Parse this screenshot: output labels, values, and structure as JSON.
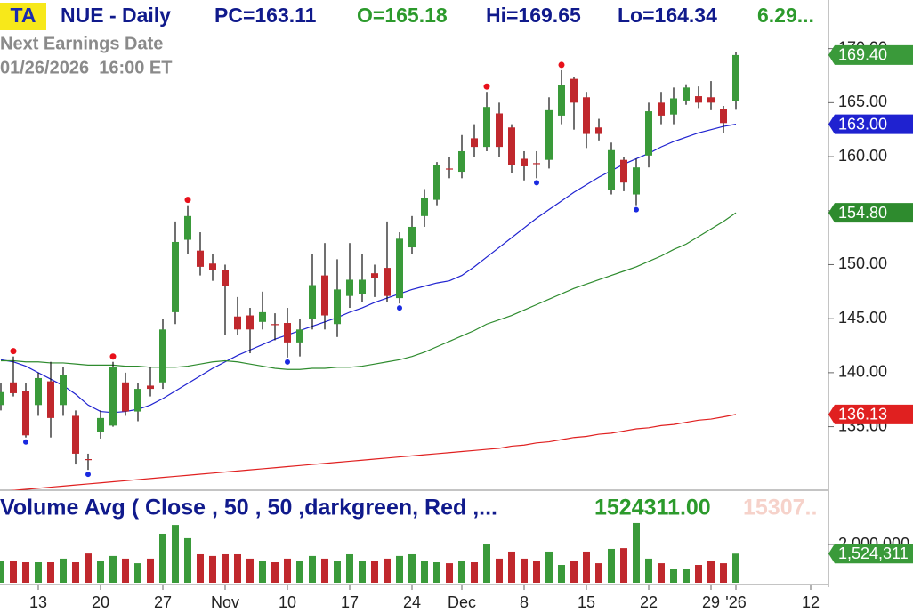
{
  "header": {
    "badge": "TA",
    "symbol": "NUE - Daily",
    "prev_close": "PC=163.11",
    "open": "O=165.18",
    "high": "Hi=169.65",
    "low": "Lo=164.34",
    "change": "6.29...",
    "earnings_title": "Next Earnings Date",
    "earnings_date": "01/26/2026  16:00 ET"
  },
  "chart_data": [
    {
      "type": "candlestick",
      "categories": [
        null,
        null,
        null,
        "13",
        null,
        null,
        null,
        null,
        "20",
        null,
        null,
        null,
        null,
        "27",
        null,
        null,
        null,
        null,
        "Nov",
        null,
        null,
        null,
        null,
        "10",
        null,
        null,
        null,
        null,
        "17",
        null,
        null,
        null,
        null,
        "24",
        null,
        null,
        null,
        "Dec",
        null,
        null,
        null,
        null,
        "8",
        null,
        null,
        null,
        null,
        "15",
        null,
        null,
        null,
        null,
        "22",
        null,
        null,
        null,
        null,
        "29",
        null,
        "'26",
        null,
        null,
        null,
        null,
        null,
        "12"
      ],
      "open": [
        137.0,
        139.1,
        138.3,
        137.0,
        139.2,
        137.0,
        136.0,
        132.0,
        134.5,
        135.1,
        139.1,
        136.4,
        138.8,
        139.1,
        145.6,
        152.3,
        151.3,
        150.1,
        149.5,
        145.2,
        145.3,
        144.7,
        144.5,
        144.6,
        142.8,
        145.0,
        149.0,
        144.5,
        147.1,
        147.3,
        149.2,
        149.7,
        146.9,
        151.6,
        154.5,
        156.0,
        158.9,
        158.6,
        161.7,
        160.9,
        164.0,
        162.7,
        159.8,
        159.4,
        159.7,
        163.8,
        167.2,
        165.5,
        162.7,
        156.9,
        159.7,
        156.5,
        160.1,
        165.0,
        163.9,
        165.2,
        165.6,
        165.5,
        164.4,
        165.18,
        null,
        null,
        null,
        null,
        null,
        null
      ],
      "high": [
        139.0,
        141.5,
        139.0,
        140.0,
        141.0,
        140.5,
        136.5,
        132.5,
        136.5,
        141.0,
        140.0,
        139.0,
        140.5,
        145.0,
        154.0,
        155.5,
        153.0,
        151.0,
        150.0,
        147.0,
        146.0,
        147.5,
        145.5,
        146.0,
        145.0,
        151.0,
        152.0,
        150.5,
        152.0,
        151.0,
        150.0,
        154.0,
        153.0,
        154.5,
        157.0,
        159.5,
        160.0,
        162.0,
        163.0,
        166.0,
        165.0,
        163.0,
        160.5,
        160.5,
        165.5,
        168.0,
        167.4,
        166.0,
        163.5,
        161.3,
        160.0,
        159.8,
        165.0,
        166.0,
        166.4,
        166.7,
        166.5,
        167.0,
        164.7,
        169.65,
        null,
        null,
        null,
        null,
        null,
        null
      ],
      "low": [
        136.5,
        137.8,
        134.0,
        136.0,
        134.0,
        136.0,
        131.5,
        131.0,
        133.9,
        135.0,
        136.0,
        135.5,
        137.8,
        138.5,
        144.5,
        151.0,
        149.0,
        148.5,
        143.5,
        143.5,
        141.8,
        144.0,
        143.0,
        141.4,
        141.5,
        144.0,
        144.0,
        143.3,
        146.0,
        146.5,
        147.0,
        146.5,
        146.4,
        151.0,
        153.5,
        155.5,
        158.0,
        158.0,
        160.0,
        160.5,
        160.0,
        158.5,
        157.8,
        158.0,
        158.9,
        163.0,
        162.5,
        160.8,
        161.5,
        156.5,
        156.8,
        155.5,
        159.0,
        163.0,
        163.0,
        164.8,
        164.5,
        164.3,
        162.2,
        164.34,
        null,
        null,
        null,
        null,
        null,
        null
      ],
      "close": [
        138.2,
        138.1,
        134.2,
        139.5,
        135.8,
        139.8,
        132.5,
        131.9,
        135.8,
        140.5,
        136.4,
        138.5,
        138.5,
        144.0,
        152.1,
        154.5,
        149.8,
        149.5,
        148.0,
        144.0,
        144.0,
        145.6,
        144.4,
        142.8,
        144.0,
        148.1,
        145.3,
        147.7,
        148.6,
        148.6,
        148.8,
        147.1,
        152.4,
        153.5,
        156.2,
        159.2,
        158.8,
        160.5,
        160.9,
        164.6,
        160.9,
        159.2,
        159.1,
        159.3,
        164.3,
        166.6,
        165.0,
        162.1,
        162.1,
        160.6,
        157.6,
        159.0,
        164.2,
        163.8,
        165.4,
        166.4,
        165.0,
        165.0,
        163.11,
        169.4,
        null,
        null,
        null,
        null,
        null,
        null
      ],
      "close_label": "169.40",
      "up_color": "#3a9a3a",
      "down_color": "#c0282d",
      "high_dot_color": "#e8101a",
      "low_dot_color": "#1a2ae0",
      "swing_highs": [
        1,
        9,
        15,
        39,
        45
      ],
      "swing_lows": [
        2,
        7,
        23,
        32,
        43,
        51
      ],
      "series": [
        {
          "color": "#1f22d0",
          "last_label": "163.00",
          "values": [
            141.2,
            141.0,
            140.6,
            140.0,
            139.4,
            138.8,
            138.0,
            137.0,
            136.4,
            136.3,
            136.4,
            136.6,
            137.0,
            137.6,
            138.3,
            139.0,
            139.7,
            140.4,
            141.0,
            141.6,
            142.1,
            142.6,
            143.1,
            143.5,
            143.9,
            144.3,
            144.7,
            145.1,
            145.6,
            146.0,
            146.5,
            146.9,
            147.3,
            147.7,
            148.0,
            148.3,
            148.5,
            149.0,
            149.8,
            150.7,
            151.6,
            152.5,
            153.4,
            154.3,
            155.1,
            155.9,
            156.7,
            157.4,
            158.1,
            158.7,
            159.3,
            159.8,
            160.3,
            160.9,
            161.4,
            161.8,
            162.2,
            162.5,
            162.8,
            163.0,
            null,
            null,
            null,
            null,
            null,
            null
          ]
        },
        {
          "color": "#2e8b2e",
          "last_label": "154.80",
          "values": [
            141.1,
            141.1,
            141.0,
            141.0,
            140.9,
            140.9,
            140.8,
            140.7,
            140.7,
            140.7,
            140.6,
            140.6,
            140.5,
            140.5,
            140.5,
            140.6,
            140.8,
            141.0,
            141.1,
            141.0,
            140.8,
            140.6,
            140.4,
            140.3,
            140.3,
            140.4,
            140.4,
            140.5,
            140.5,
            140.6,
            140.8,
            141.0,
            141.2,
            141.5,
            141.9,
            142.4,
            142.9,
            143.4,
            143.9,
            144.5,
            144.9,
            145.3,
            145.8,
            146.3,
            146.8,
            147.3,
            147.8,
            148.2,
            148.6,
            149.0,
            149.4,
            149.8,
            150.3,
            150.8,
            151.4,
            151.9,
            152.6,
            153.3,
            154.0,
            154.8,
            null,
            null,
            null,
            null,
            null,
            null
          ]
        },
        {
          "color": "#e02020",
          "last_label": "136.13",
          "values": [
            129.0,
            129.1,
            129.2,
            129.3,
            129.4,
            129.5,
            129.6,
            129.7,
            129.8,
            129.9,
            130.0,
            130.1,
            130.2,
            130.3,
            130.4,
            130.5,
            130.6,
            130.7,
            130.8,
            130.9,
            131.0,
            131.1,
            131.2,
            131.3,
            131.4,
            131.5,
            131.6,
            131.7,
            131.8,
            131.9,
            132.0,
            132.1,
            132.2,
            132.3,
            132.4,
            132.5,
            132.6,
            132.7,
            132.8,
            132.9,
            133.0,
            133.2,
            133.3,
            133.5,
            133.6,
            133.8,
            134.0,
            134.1,
            134.3,
            134.4,
            134.6,
            134.8,
            134.9,
            135.1,
            135.2,
            135.4,
            135.6,
            135.7,
            135.9,
            136.13,
            null,
            null,
            null,
            null,
            null,
            null
          ]
        }
      ],
      "ylim": [
        129.2,
        174.5
      ],
      "yticks": [
        {
          "value": 135,
          "label": "135.00"
        },
        {
          "value": 140,
          "label": "140.00"
        },
        {
          "value": 145,
          "label": "145.00"
        },
        {
          "value": 150,
          "label": "150.00"
        },
        {
          "value": 155,
          "label": "155.00"
        },
        {
          "value": 160,
          "label": "160.00"
        },
        {
          "value": 165,
          "label": "165.00"
        },
        {
          "value": 170,
          "label": "170.00"
        }
      ]
    },
    {
      "type": "bar",
      "title": "Volume Avg ( Close , 50 , 50 ,darkgreen, Red ,...",
      "value_text": "1524311.00",
      "avg_text": "15307..",
      "values": [
        1160000,
        1160000,
        1070000,
        1070000,
        1070000,
        1260000,
        1070000,
        1530000,
        1160000,
        1400000,
        1260000,
        1020000,
        1260000,
        2560000,
        3020000,
        2330000,
        1490000,
        1400000,
        1490000,
        1490000,
        1260000,
        1160000,
        1070000,
        1260000,
        1160000,
        1400000,
        1260000,
        1160000,
        1490000,
        1160000,
        1160000,
        1260000,
        1400000,
        1490000,
        1160000,
        1070000,
        1020000,
        1160000,
        1070000,
        2000000,
        1260000,
        1630000,
        1260000,
        1160000,
        1630000,
        930000,
        1160000,
        1630000,
        1020000,
        1770000,
        1810000,
        3120000,
        1260000,
        1020000,
        700000,
        700000,
        930000,
        1160000,
        1020000,
        1524311,
        null,
        null,
        null,
        null,
        null,
        null
      ],
      "last_label": "1,524,311",
      "ylim": [
        0,
        4560000
      ],
      "yticks": [
        {
          "value": 2000000,
          "label": "2,000,000"
        }
      ]
    }
  ]
}
